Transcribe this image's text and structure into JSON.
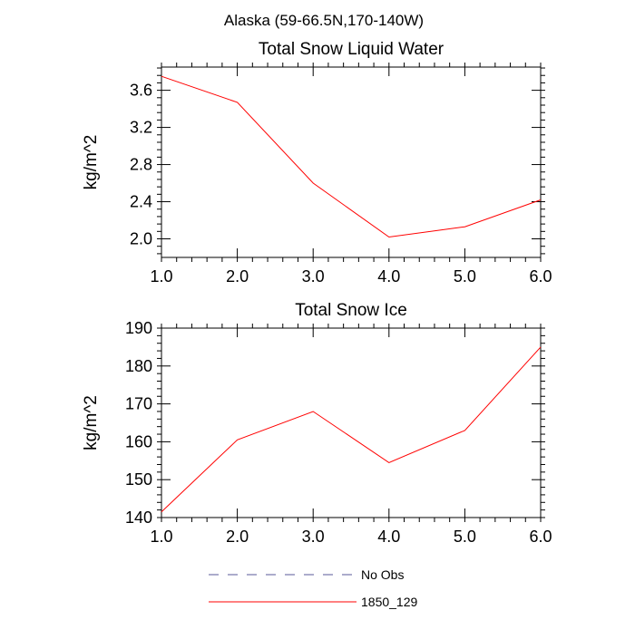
{
  "figure_title": "Alaska (59-66.5N,170-140W)",
  "chart_data": [
    {
      "type": "line",
      "title": "Total Snow Liquid Water",
      "xlabel": "",
      "ylabel": "kg/m^2",
      "x": [
        1.0,
        2.0,
        3.0,
        4.0,
        5.0,
        6.0
      ],
      "x_tick_labels": [
        "1.0",
        "2.0",
        "3.0",
        "4.0",
        "5.0",
        "6.0"
      ],
      "xlim": [
        1.0,
        6.0
      ],
      "ylim": [
        1.8,
        3.85
      ],
      "y_ticks": [
        2.0,
        2.4,
        2.8,
        3.2,
        3.6
      ],
      "y_tick_labels": [
        "2.0",
        "2.4",
        "2.8",
        "3.2",
        "3.6"
      ],
      "grid": false,
      "series": [
        {
          "name": "1850_129",
          "color": "#ff0000",
          "style": "solid",
          "values": [
            3.75,
            3.47,
            2.6,
            2.02,
            2.13,
            2.42
          ]
        }
      ]
    },
    {
      "type": "line",
      "title": "Total Snow Ice",
      "xlabel": "",
      "ylabel": "kg/m^2",
      "x": [
        1.0,
        2.0,
        3.0,
        4.0,
        5.0,
        6.0
      ],
      "x_tick_labels": [
        "1.0",
        "2.0",
        "3.0",
        "4.0",
        "5.0",
        "6.0"
      ],
      "xlim": [
        1.0,
        6.0
      ],
      "ylim": [
        140,
        190
      ],
      "y_ticks": [
        140,
        150,
        160,
        170,
        180,
        190
      ],
      "y_tick_labels": [
        "140",
        "150",
        "160",
        "170",
        "180",
        "190"
      ],
      "grid": false,
      "series": [
        {
          "name": "1850_129",
          "color": "#ff0000",
          "style": "solid",
          "values": [
            141.5,
            160.5,
            168.0,
            154.5,
            163.0,
            185.0
          ]
        }
      ]
    }
  ],
  "legend": {
    "placement": "bottom",
    "items": [
      {
        "label": "No Obs",
        "color": "#5a5a9a",
        "style": "dashed"
      },
      {
        "label": "1850_129",
        "color": "#ff0000",
        "style": "solid"
      }
    ]
  }
}
